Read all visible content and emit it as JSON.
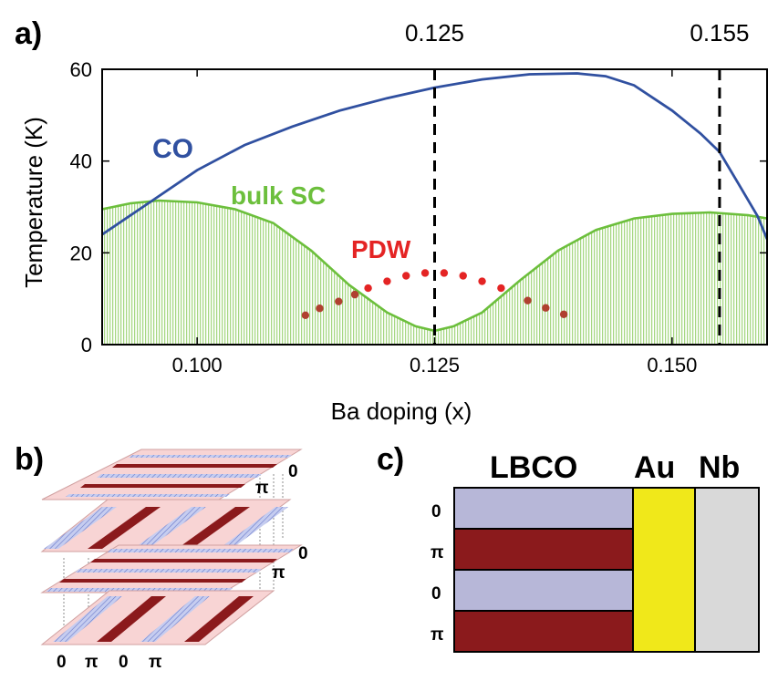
{
  "panel_labels": {
    "a": "a)",
    "b": "b)",
    "c": "c)"
  },
  "chart_data": {
    "type": "line",
    "xlabel": "Ba doping (x)",
    "ylabel": "Temperature (K)",
    "xlim": [
      0.09,
      0.16
    ],
    "ylim": [
      0,
      60
    ],
    "xticks": [
      0.1,
      0.125,
      0.15
    ],
    "xtick_labels": [
      "0.100",
      "0.125",
      "0.150"
    ],
    "yticks": [
      0,
      20,
      40,
      60
    ],
    "ytick_labels": [
      "0",
      "20",
      "40",
      "60"
    ],
    "top_markers": [
      {
        "x": 0.125,
        "label": "0.125"
      },
      {
        "x": 0.155,
        "label": "0.155"
      }
    ],
    "colors": {
      "co": "#3050a0",
      "sc": "#6cbf3c",
      "sc_fill": "#d8efc4",
      "pdw": "#e42424",
      "pdw_dark": "#b04030"
    },
    "series": [
      {
        "name": "CO",
        "x": [
          0.09,
          0.095,
          0.1,
          0.105,
          0.11,
          0.115,
          0.12,
          0.125,
          0.13,
          0.135,
          0.14,
          0.143,
          0.146,
          0.15,
          0.153,
          0.155,
          0.157,
          0.159,
          0.16
        ],
        "y": [
          24,
          31,
          38,
          43.5,
          47.5,
          51,
          53.7,
          56,
          57.8,
          58.9,
          59.1,
          58.5,
          56.5,
          51,
          46,
          42,
          35,
          28,
          23
        ]
      },
      {
        "name": "bulk SC",
        "x": [
          0.09,
          0.093,
          0.096,
          0.1,
          0.104,
          0.108,
          0.112,
          0.116,
          0.12,
          0.123,
          0.125,
          0.127,
          0.13,
          0.134,
          0.138,
          0.142,
          0.146,
          0.15,
          0.154,
          0.158,
          0.16
        ],
        "y": [
          29.5,
          30.8,
          31.4,
          31,
          29.5,
          26.5,
          20.5,
          13,
          7,
          4,
          3,
          4,
          7,
          14,
          20.5,
          25,
          27.5,
          28.5,
          28.8,
          28.2,
          27.5
        ]
      },
      {
        "name": "PDW",
        "x": [
          0.118,
          0.12,
          0.122,
          0.124,
          0.126,
          0.128,
          0.13,
          0.132
        ],
        "y": [
          12.3,
          13.8,
          15.0,
          15.6,
          15.6,
          15.0,
          13.8,
          12.3
        ]
      },
      {
        "name": "PDW (dark points)",
        "x": [
          0.1114,
          0.1129,
          0.1149,
          0.1166,
          0.1348,
          0.1367,
          0.1386
        ],
        "y": [
          6.4,
          7.9,
          9.4,
          10.9,
          9.6,
          8.0,
          6.6
        ]
      }
    ],
    "annotations": {
      "co": "CO",
      "sc": "bulk SC",
      "pdw": "PDW"
    }
  },
  "panel_b": {
    "right_labels": [
      "0",
      "π",
      "0",
      "π"
    ],
    "bottom_labels": [
      "0",
      "π",
      "0",
      "π"
    ]
  },
  "panel_c": {
    "headers": [
      "LBCO",
      "Au",
      "Nb"
    ],
    "row_labels": [
      "0",
      "π",
      "0",
      "π"
    ],
    "colors": {
      "zero": "#b7b7d8",
      "pi": "#8b1a1c",
      "au": "#f0e81a",
      "nb": "#d9d9d9"
    }
  }
}
